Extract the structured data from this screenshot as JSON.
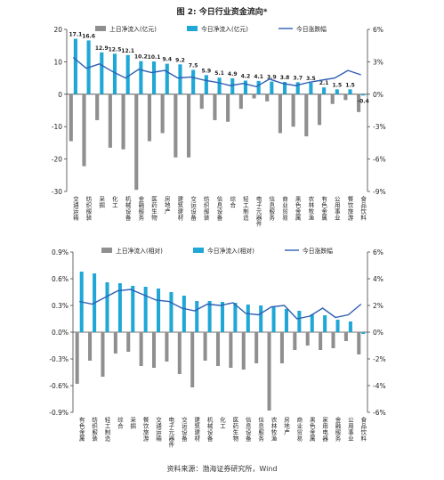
{
  "figure": {
    "title": "图 2: 今日行业资金流向*",
    "source": "资料来源：渤海证券研究所，Wind"
  },
  "colors": {
    "prev_bar": "#8f8f8f",
    "today_bar": "#1fa7d6",
    "line": "#2f5fb3",
    "axis": "#444444"
  },
  "chart_data": [
    {
      "type": "bar",
      "title": "",
      "legend": [
        "上日净流入(亿元)",
        "今日净流入(亿元)",
        "今日涨跌幅"
      ],
      "legend_position": "top",
      "categories": [
        "交通运输",
        "纺织服装",
        "采掘",
        "化工",
        "机械设备",
        "金融服务",
        "医药生物",
        "房地产",
        "建筑建材",
        "交运设备",
        "纺织服装",
        "信息设备",
        "综合",
        "轻工制造",
        "电子元器件",
        "信息服务",
        "商业贸易",
        "黑色金属",
        "农林牧渔",
        "有色金属",
        "公用事业",
        "餐饮旅游",
        "食品饮料"
      ],
      "series": [
        {
          "name": "上日净流入(亿元)",
          "axis": "left",
          "values": [
            -14.5,
            -22.2,
            -8,
            -16.5,
            -17,
            -29.5,
            -14.5,
            -12,
            -19.5,
            -19.5,
            -4.5,
            -8,
            -8.5,
            -4.5,
            -1.3,
            -2.2,
            -12,
            -10,
            -13,
            -9.5,
            -3,
            -1.8,
            -5.5
          ]
        },
        {
          "name": "今日净流入(亿元)",
          "axis": "left",
          "values": [
            17.1,
            16.6,
            12.9,
            12.5,
            12.1,
            10.2,
            10.1,
            9.4,
            9.2,
            7.5,
            5.9,
            5.1,
            4.9,
            4.2,
            4.1,
            3.9,
            3.8,
            3.7,
            3.5,
            2.1,
            1.5,
            1.5,
            -0.4
          ]
        },
        {
          "name": "今日涨跌幅",
          "axis": "right",
          "type": "line",
          "values": [
            3.4,
            2.4,
            2.8,
            2.1,
            1.5,
            2.3,
            2.0,
            2.2,
            1.5,
            1.6,
            1.3,
            1.1,
            0.8,
            1.0,
            0.7,
            1.4,
            1.0,
            0.8,
            1.1,
            1.3,
            1.5,
            2.2,
            1.8
          ]
        }
      ],
      "data_labels": [
        "17.1",
        "16.6",
        "12.9",
        "12.5",
        "12.1",
        "10.2",
        "10.1",
        "9.4",
        "9.2",
        "7.5",
        "5.9",
        "5.1",
        "4.9",
        "4.2",
        "4.1",
        "3.9",
        "3.8",
        "3.7",
        "3.5",
        "2.1",
        "1.5",
        "1.5",
        "-0.4"
      ],
      "ylim": [
        -30,
        20
      ],
      "yticks": [
        "20",
        "10",
        "0",
        "-10",
        "-20",
        "-30"
      ],
      "y2lim": [
        -9,
        6
      ],
      "y2ticks": [
        "6%",
        "3%",
        "0%",
        "-3%",
        "-6%",
        "-9%"
      ],
      "grid": false
    },
    {
      "type": "bar",
      "title": "",
      "legend": [
        "上日净流入(相对)",
        "今日净流入(相对)",
        "今日涨跌幅"
      ],
      "legend_position": "top",
      "categories": [
        "有色金属",
        "纺织服装",
        "轻工制造",
        "综合",
        "采掘",
        "餐饮旅游",
        "交通运输",
        "电子元器件",
        "交运设备",
        "建筑建材",
        "机械设备",
        "化工",
        "医药生物",
        "信息设备",
        "信息服务",
        "农林牧渔",
        "房地产",
        "商业贸易",
        "黑色金属",
        "家用电器",
        "金融服务",
        "公用事业",
        "食品饮料"
      ],
      "series": [
        {
          "name": "上日净流入(相对)",
          "axis": "left",
          "values": [
            -0.58,
            -0.32,
            -0.5,
            -0.24,
            -0.22,
            -0.38,
            -0.4,
            -0.33,
            -0.47,
            -0.62,
            -0.32,
            -0.38,
            -0.4,
            -0.42,
            -0.35,
            -0.88,
            -0.35,
            -0.2,
            -0.15,
            -0.2,
            -0.18,
            -0.1,
            -0.25
          ]
        },
        {
          "name": "今日净流入(相对)",
          "axis": "left",
          "values": [
            0.68,
            0.66,
            0.56,
            0.55,
            0.52,
            0.51,
            0.49,
            0.45,
            0.41,
            0.35,
            0.35,
            0.34,
            0.33,
            0.31,
            0.3,
            0.28,
            0.26,
            0.24,
            0.2,
            0.19,
            0.14,
            0.12,
            -0.02
          ]
        },
        {
          "name": "今日涨跌幅",
          "axis": "right",
          "type": "line",
          "values": [
            2.3,
            2.1,
            2.6,
            3.1,
            3.2,
            2.8,
            2.4,
            2.3,
            1.8,
            1.6,
            2.1,
            2.0,
            2.2,
            1.4,
            1.3,
            1.9,
            2.0,
            1.0,
            1.2,
            1.8,
            1.1,
            1.3,
            2.1
          ]
        }
      ],
      "ylim": [
        -0.9,
        0.9
      ],
      "yticks": [
        "0.9%",
        "0.6%",
        "0.3%",
        "0.0%",
        "-0.3%",
        "-0.6%",
        "-0.9%"
      ],
      "y2lim": [
        -6,
        6
      ],
      "y2ticks": [
        "6%",
        "4%",
        "2%",
        "0%",
        "-2%",
        "-4%",
        "-6%"
      ],
      "grid": false
    }
  ]
}
